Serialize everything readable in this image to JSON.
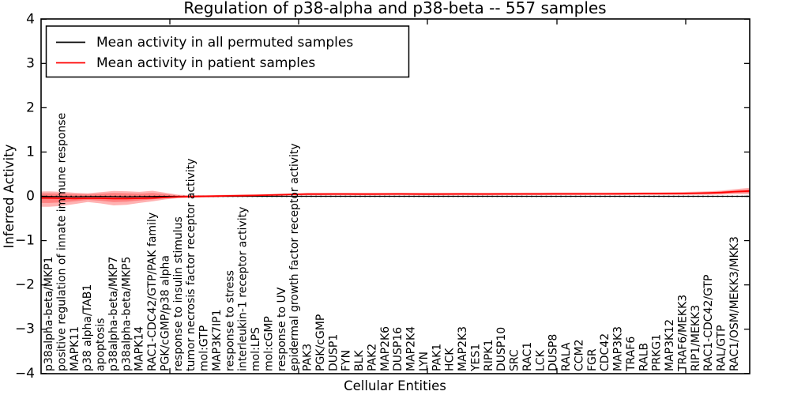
{
  "figure": {
    "title": "Regulation of p38-alpha and p38-beta -- 557 samples",
    "xlabel": "Cellular Entities",
    "ylabel": "Inferred Activity"
  },
  "legend": {
    "entries": [
      {
        "label": "Mean activity in all permuted samples",
        "color": "#000000"
      },
      {
        "label": "Mean activity in patient samples",
        "color": "#ff0000"
      }
    ]
  },
  "colors": {
    "patient_line": "#ff0000",
    "permuted_line": "#000000",
    "band_fill": "#ff0000",
    "axis": "#000000",
    "background": "#ffffff"
  },
  "chart_data": {
    "type": "line",
    "title": "Regulation of p38-alpha and p38-beta -- 557 samples",
    "xlabel": "Cellular Entities",
    "ylabel": "Inferred Activity",
    "ylim": [
      -4,
      4
    ],
    "yticks": [
      4,
      3,
      2,
      1,
      0,
      -1,
      -2,
      -3,
      -4
    ],
    "grid": false,
    "legend_position": "upper left",
    "categories": [
      "p38alpha-beta/MKP1",
      "positive regulation of innate immune response",
      "MAPK11",
      "p38 alpha/TAB1",
      "apoptosis",
      "p38alpha-beta/MKP7",
      "p38alpha-beta/MKP5",
      "MAPK14",
      "RAC1-CDC42/GTP/PAK family",
      "PGK/cGMP/p38 alpha",
      "response to insulin stimulus",
      "tumor necrosis factor receptor activity",
      "mol:GTP",
      "MAP3K7IP1",
      "response to stress",
      "interleukin-1 receptor activity",
      "mol:LPS",
      "mol:cGMP",
      "response to UV",
      "epidermal growth factor receptor activity",
      "PAK3",
      "PGK/cGMP",
      "DUSP1",
      "FYN",
      "BLK",
      "PAK2",
      "MAP2K6",
      "DUSP16",
      "MAP2K4",
      "LYN",
      "PAK1",
      "HCK",
      "MAP2K3",
      "YES1",
      "RIPK1",
      "DUSP10",
      "SRC",
      "RAC1",
      "LCK",
      "DUSP8",
      "RALA",
      "CCM2",
      "FGR",
      "CDC42",
      "MAP3K3",
      "TRAF6",
      "RALB",
      "PRKG1",
      "MAP3K12",
      "TRAF6/MEKK3",
      "RIP1/MEKK3",
      "RAC1-CDC42/GTP",
      "RAL/GTP",
      "RAC1/OSM/MEKK3/MKK3"
    ],
    "baseline": {
      "value": 0,
      "style": "dotted",
      "color": "#000000"
    },
    "series": [
      {
        "name": "Mean activity in all permuted samples",
        "color": "#000000",
        "style": "solid",
        "width": 1.3,
        "values": [
          -0.006,
          -0.008,
          -0.01,
          -0.008,
          -0.006,
          -0.008,
          -0.01,
          -0.008,
          -0.005,
          -0.003,
          -0.002,
          -0.001,
          0,
          0,
          0,
          0,
          0,
          0,
          0,
          0,
          0,
          0,
          0,
          0,
          0,
          0,
          0,
          0,
          0,
          0,
          0,
          0,
          0,
          0,
          0,
          0,
          0,
          0,
          0,
          0,
          0,
          0,
          0,
          0,
          0,
          0,
          0,
          0,
          0,
          0,
          0,
          0,
          0,
          0
        ],
        "edge": 0
      },
      {
        "name": "Mean activity in patient samples",
        "color": "#ff0000",
        "style": "solid",
        "width": 1.8,
        "values": [
          -0.04,
          -0.045,
          -0.05,
          -0.045,
          -0.045,
          -0.05,
          -0.05,
          -0.045,
          -0.04,
          -0.025,
          -0.012,
          -0.005,
          0,
          0.005,
          0.01,
          0.015,
          0.02,
          0.028,
          0.035,
          0.045,
          0.05,
          0.05,
          0.052,
          0.052,
          0.05,
          0.05,
          0.052,
          0.053,
          0.052,
          0.05,
          0.05,
          0.052,
          0.053,
          0.052,
          0.052,
          0.053,
          0.053,
          0.054,
          0.054,
          0.055,
          0.055,
          0.055,
          0.056,
          0.056,
          0.057,
          0.058,
          0.06,
          0.06,
          0.062,
          0.065,
          0.07,
          0.075,
          0.085,
          0.105
        ],
        "edge": 0.12
      }
    ],
    "bands": [
      {
        "name": "patient-band-outer",
        "fill": "#ff0000",
        "opacity": 0.3,
        "upper": [
          0.11,
          0.1,
          0.08,
          0.07,
          0.095,
          0.12,
          0.115,
          0.1,
          0.125,
          0.08,
          0.035,
          0.025,
          0.025,
          0.03,
          0.035,
          0.04,
          0.045,
          0.05,
          0.06,
          0.07,
          0.078,
          0.078,
          0.08,
          0.08,
          0.078,
          0.078,
          0.08,
          0.081,
          0.08,
          0.078,
          0.078,
          0.08,
          0.081,
          0.08,
          0.08,
          0.081,
          0.081,
          0.082,
          0.082,
          0.083,
          0.083,
          0.083,
          0.084,
          0.084,
          0.085,
          0.086,
          0.09,
          0.09,
          0.093,
          0.098,
          0.105,
          0.115,
          0.13,
          0.16
        ],
        "lower": [
          -0.235,
          -0.215,
          -0.175,
          -0.13,
          -0.16,
          -0.205,
          -0.19,
          -0.15,
          -0.115,
          -0.07,
          -0.04,
          -0.032,
          -0.025,
          -0.02,
          -0.015,
          -0.01,
          -0.005,
          0.005,
          0.01,
          0.02,
          0.022,
          0.022,
          0.024,
          0.024,
          0.022,
          0.022,
          0.024,
          0.025,
          0.024,
          0.022,
          0.022,
          0.024,
          0.025,
          0.024,
          0.024,
          0.025,
          0.025,
          0.026,
          0.026,
          0.027,
          0.027,
          0.027,
          0.028,
          0.028,
          0.029,
          0.03,
          0.03,
          0.03,
          0.031,
          0.032,
          0.035,
          0.035,
          0.04,
          0.05
        ],
        "edge_upper": 0.19,
        "edge_lower": 0.05
      },
      {
        "name": "patient-band-inner",
        "fill": "#ff0000",
        "opacity": 0.28,
        "upper": [
          0.07,
          0.06,
          0.05,
          0.045,
          0.06,
          0.075,
          0.07,
          0.06,
          0.075,
          0.05,
          0.02,
          0.015,
          0.015,
          0.02,
          0.025,
          0.03,
          0.035,
          0.043,
          0.05,
          0.06,
          0.065,
          0.065,
          0.067,
          0.067,
          0.065,
          0.065,
          0.067,
          0.068,
          0.067,
          0.065,
          0.065,
          0.067,
          0.068,
          0.067,
          0.067,
          0.068,
          0.068,
          0.069,
          0.069,
          0.07,
          0.07,
          0.07,
          0.071,
          0.071,
          0.072,
          0.073,
          0.075,
          0.075,
          0.077,
          0.08,
          0.088,
          0.095,
          0.11,
          0.13
        ],
        "lower": [
          -0.15,
          -0.135,
          -0.11,
          -0.08,
          -0.1,
          -0.13,
          -0.12,
          -0.095,
          -0.07,
          -0.045,
          -0.025,
          -0.018,
          -0.015,
          -0.01,
          -0.005,
          0,
          0.005,
          0.013,
          0.02,
          0.03,
          0.035,
          0.035,
          0.037,
          0.037,
          0.035,
          0.035,
          0.037,
          0.038,
          0.037,
          0.035,
          0.035,
          0.037,
          0.038,
          0.037,
          0.037,
          0.038,
          0.038,
          0.039,
          0.039,
          0.04,
          0.04,
          0.04,
          0.041,
          0.041,
          0.042,
          0.043,
          0.045,
          0.045,
          0.047,
          0.05,
          0.052,
          0.055,
          0.06,
          0.075
        ],
        "edge_upper": 0.155,
        "edge_lower": 0.08
      }
    ]
  }
}
